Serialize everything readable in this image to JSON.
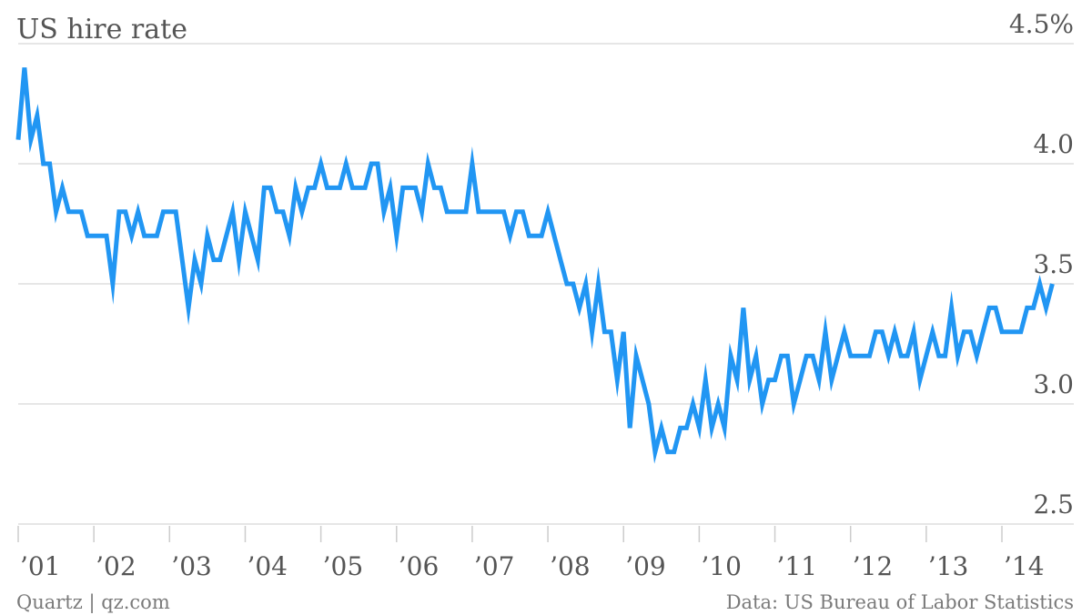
{
  "chart_data": {
    "type": "line",
    "title": "US hire rate",
    "xlabel": "",
    "ylabel": "",
    "ylim": [
      2.5,
      4.5
    ],
    "y_ticks": [
      "2.5",
      "3.0",
      "3.5",
      "4.5%"
    ],
    "y_ticks_mid": [
      "4.0"
    ],
    "x_ticks": [
      "’01",
      "’02",
      "’03",
      "’04",
      "’05",
      "’06",
      "’07",
      "’08",
      "’09",
      "’10",
      "’11",
      "’12",
      "’13",
      "’14"
    ],
    "grid": true,
    "line_color": "#2196f3",
    "x_start": "2001-01",
    "series": [
      {
        "values": [
          4.1,
          4.4,
          4.1,
          4.2,
          4.0,
          4.0,
          3.8,
          3.9,
          3.8,
          3.8,
          3.8,
          3.7,
          3.7,
          3.7,
          3.7,
          3.5,
          3.8,
          3.8,
          3.7,
          3.8,
          3.7,
          3.7,
          3.7,
          3.8,
          3.8,
          3.8,
          3.6,
          3.4,
          3.6,
          3.5,
          3.7,
          3.6,
          3.6,
          3.7,
          3.8,
          3.6,
          3.8,
          3.7,
          3.6,
          3.9,
          3.9,
          3.8,
          3.8,
          3.7,
          3.9,
          3.8,
          3.9,
          3.9,
          4.0,
          3.9,
          3.9,
          3.9,
          4.0,
          3.9,
          3.9,
          3.9,
          4.0,
          4.0,
          3.8,
          3.9,
          3.7,
          3.9,
          3.9,
          3.9,
          3.8,
          4.0,
          3.9,
          3.9,
          3.8,
          3.8,
          3.8,
          3.8,
          4.0,
          3.8,
          3.8,
          3.8,
          3.8,
          3.8,
          3.7,
          3.8,
          3.8,
          3.7,
          3.7,
          3.7,
          3.8,
          3.7,
          3.6,
          3.5,
          3.5,
          3.4,
          3.5,
          3.3,
          3.5,
          3.3,
          3.3,
          3.1,
          3.3,
          2.9,
          3.2,
          3.1,
          3.0,
          2.8,
          2.9,
          2.8,
          2.8,
          2.9,
          2.9,
          3.0,
          2.9,
          3.1,
          2.9,
          3.0,
          2.9,
          3.2,
          3.1,
          3.4,
          3.1,
          3.2,
          3.0,
          3.1,
          3.1,
          3.2,
          3.2,
          3.0,
          3.1,
          3.2,
          3.2,
          3.1,
          3.3,
          3.1,
          3.2,
          3.3,
          3.2,
          3.2,
          3.2,
          3.2,
          3.3,
          3.3,
          3.2,
          3.3,
          3.2,
          3.2,
          3.3,
          3.1,
          3.2,
          3.3,
          3.2,
          3.2,
          3.4,
          3.2,
          3.3,
          3.3,
          3.2,
          3.3,
          3.4,
          3.4,
          3.3,
          3.3,
          3.3,
          3.3,
          3.4,
          3.4,
          3.5,
          3.4,
          3.5
        ]
      }
    ]
  },
  "footer": {
    "source_left": "Quartz | qz.com",
    "source_right": "Data: US Bureau of Labor Statistics"
  }
}
